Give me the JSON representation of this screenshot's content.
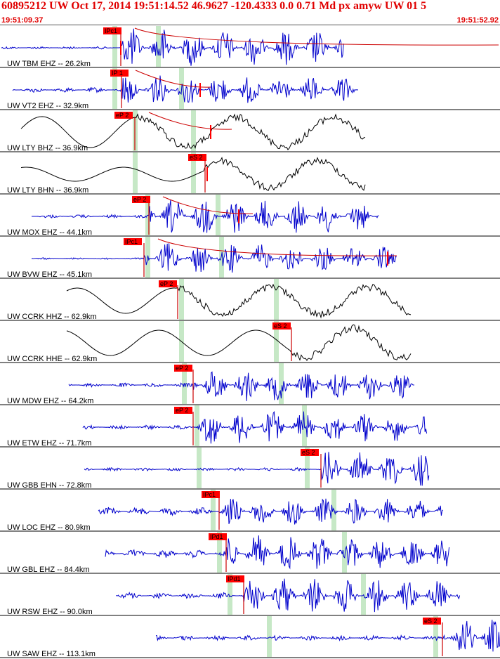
{
  "header": {
    "title": "60895212 UW Oct 17, 2014 19:51:14.52   46.9627 -120.4333  0.0 0.71 Md px amyw UW 01   5",
    "start_time": "19:51:09.37",
    "end_time": "19:51:52.92"
  },
  "colors": {
    "header_text": "#e00000",
    "trace_blue": "#0000cc",
    "trace_black": "#000000",
    "pick_box": "#ff0000",
    "pick_line": "#cc0000",
    "coda_line": "#cc0000",
    "window_bar": "#c6e8c6",
    "separator": "#000000"
  },
  "traces": [
    {
      "label": "UW TBM EHZ -- 26.2km",
      "color": "blue",
      "pick": "IPc1",
      "gain": 1.0
    },
    {
      "label": "UW VT2 EHZ -- 32.9km",
      "color": "blue",
      "pick": "IP 1",
      "gain": 0.7
    },
    {
      "label": "UW LTY BHZ -- 36.9km",
      "color": "black",
      "pick": "eP 2",
      "gain": 1.0
    },
    {
      "label": "UW LTY BHN -- 36.9km",
      "color": "black",
      "pick": "eS 2",
      "gain": 1.0
    },
    {
      "label": "UW MOX EHZ -- 44.1km",
      "color": "blue",
      "pick": "eP 2",
      "gain": 1.0
    },
    {
      "label": "UW BVW EHZ -- 45.1km",
      "color": "blue",
      "pick": "IPc1",
      "gain": 1.0
    },
    {
      "label": "UW CCRK HHZ -- 62.9km",
      "color": "black",
      "pick": "eP 2",
      "gain": 1.0
    },
    {
      "label": "UW CCRK HHE -- 62.9km",
      "color": "black",
      "pick": "eS 2",
      "gain": 1.0
    },
    {
      "label": "UW MDW EHZ -- 64.2km",
      "color": "blue",
      "pick": "eP 2",
      "gain": 1.0
    },
    {
      "label": "UW ETW EHZ -- 71.7km",
      "color": "blue",
      "pick": "eP 2",
      "gain": 1.0
    },
    {
      "label": "UW GBB EHN -- 72.8km",
      "color": "blue",
      "pick": "eS 2",
      "gain": 1.0
    },
    {
      "label": "UW LOC EHZ -- 80.9km",
      "color": "blue",
      "pick": "IPc1",
      "gain": 1.0
    },
    {
      "label": "UW GBL EHZ -- 84.4km",
      "color": "blue",
      "pick": "IPd1",
      "gain": 1.0
    },
    {
      "label": "UW RSW EHZ -- 90.0km",
      "color": "blue",
      "pick": "IPd1",
      "gain": 1.0
    },
    {
      "label": "UW SAW EHZ -- 113.1km",
      "color": "blue",
      "pick": "eS 2",
      "gain": 1.0
    }
  ]
}
